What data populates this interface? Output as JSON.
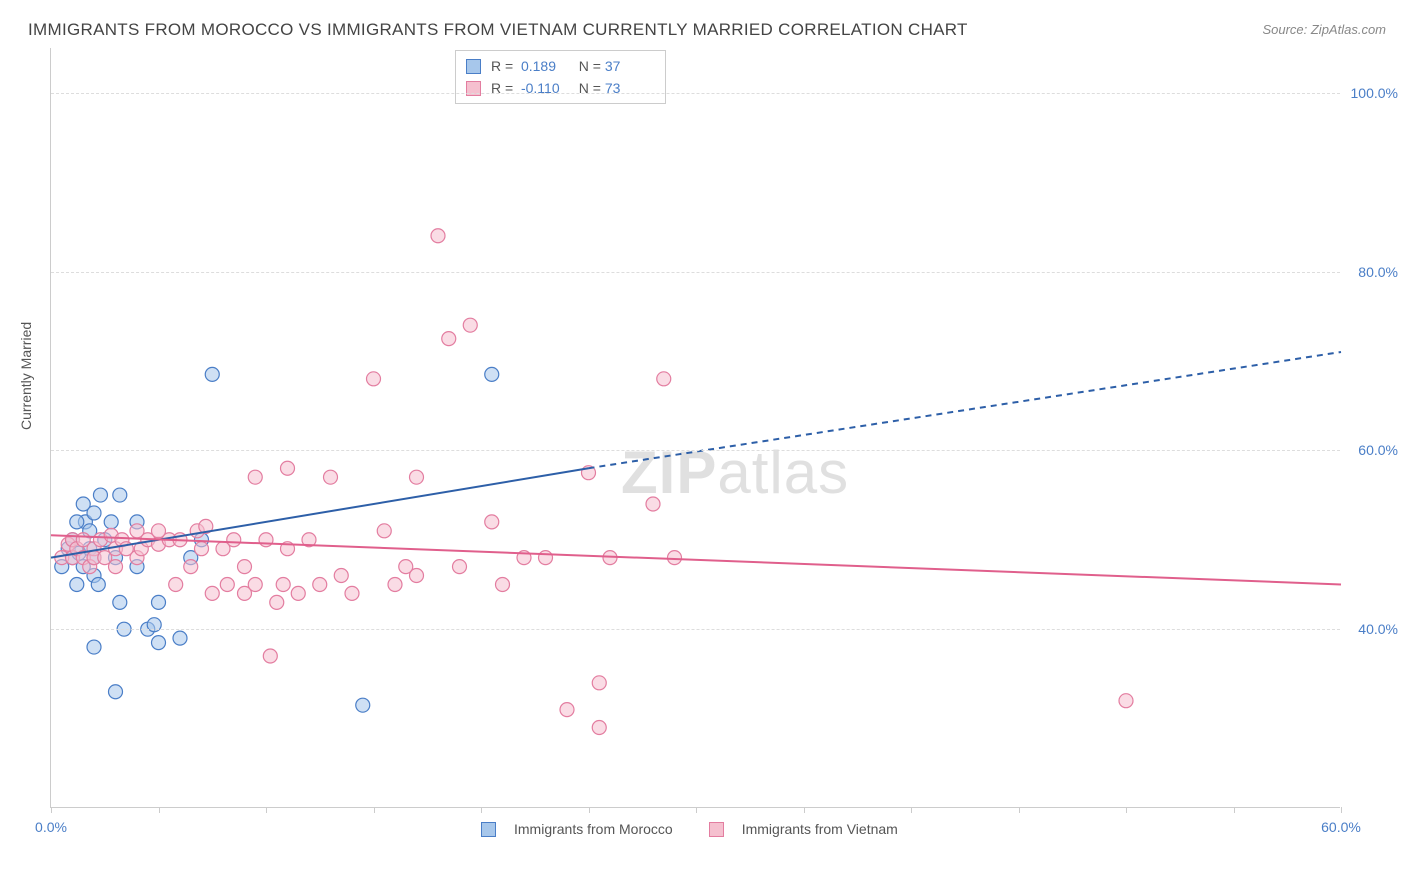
{
  "title": "IMMIGRANTS FROM MOROCCO VS IMMIGRANTS FROM VIETNAM CURRENTLY MARRIED CORRELATION CHART",
  "source": "Source: ZipAtlas.com",
  "watermark_bold": "ZIP",
  "watermark_light": "atlas",
  "y_axis_title": "Currently Married",
  "chart": {
    "type": "scatter",
    "background_color": "#ffffff",
    "grid_color": "#dddddd",
    "axis_color": "#cccccc",
    "tick_label_color": "#4a7ec7",
    "xlim": [
      0,
      60
    ],
    "ylim": [
      20,
      105
    ],
    "x_ticks": [
      0,
      5,
      10,
      15,
      20,
      25,
      30,
      35,
      40,
      45,
      50,
      55,
      60
    ],
    "x_tick_labels": {
      "0": "0.0%",
      "60": "60.0%"
    },
    "y_grid": [
      40,
      60,
      80,
      100
    ],
    "y_tick_labels": {
      "40": "40.0%",
      "60": "60.0%",
      "80": "80.0%",
      "100": "100.0%"
    },
    "marker_radius": 7,
    "marker_opacity": 0.55,
    "marker_stroke_width": 1.2,
    "line_width": 2,
    "series": [
      {
        "name": "Immigrants from Morocco",
        "fill_color": "#a7c7eb",
        "stroke_color": "#4a7ec7",
        "line_color": "#2d5fa8",
        "R": "0.189",
        "N": "37",
        "trend": {
          "x1": 0,
          "y1": 48,
          "x2_solid": 25,
          "y2_solid": 58,
          "x2_dash": 60,
          "y2_dash": 71
        },
        "points": [
          [
            0.5,
            47
          ],
          [
            0.8,
            49
          ],
          [
            1,
            48
          ],
          [
            1,
            50
          ],
          [
            1.2,
            45
          ],
          [
            1.3,
            48.5
          ],
          [
            1.5,
            47
          ],
          [
            1.5,
            54
          ],
          [
            1.6,
            52
          ],
          [
            1.8,
            49
          ],
          [
            2,
            48
          ],
          [
            2,
            53
          ],
          [
            2,
            46
          ],
          [
            2.2,
            45
          ],
          [
            2.3,
            55
          ],
          [
            2.5,
            50
          ],
          [
            2.8,
            52
          ],
          [
            3,
            48
          ],
          [
            3.2,
            55
          ],
          [
            3.2,
            43
          ],
          [
            4,
            52
          ],
          [
            4,
            47
          ],
          [
            4.5,
            40
          ],
          [
            5,
            38.5
          ],
          [
            5,
            43
          ],
          [
            6,
            39
          ],
          [
            6.5,
            48
          ],
          [
            7,
            50
          ],
          [
            3,
            33
          ],
          [
            3.4,
            40
          ],
          [
            4.8,
            40.5
          ],
          [
            7.5,
            68.5
          ],
          [
            14.5,
            31.5
          ],
          [
            20.5,
            68.5
          ],
          [
            2,
            38
          ],
          [
            1.2,
            52
          ],
          [
            1.8,
            51
          ]
        ]
      },
      {
        "name": "Immigrants from Vietnam",
        "fill_color": "#f5c0cf",
        "stroke_color": "#e37da0",
        "line_color": "#e05f8c",
        "R": "-0.110",
        "N": "73",
        "trend": {
          "x1": 0,
          "y1": 50.5,
          "x2_solid": 60,
          "y2_solid": 45,
          "x2_dash": 60,
          "y2_dash": 45
        },
        "points": [
          [
            0.5,
            48
          ],
          [
            0.8,
            49.5
          ],
          [
            1,
            48
          ],
          [
            1,
            50
          ],
          [
            1.2,
            49
          ],
          [
            1.5,
            48
          ],
          [
            1.5,
            50
          ],
          [
            1.8,
            47
          ],
          [
            2,
            49
          ],
          [
            2,
            48
          ],
          [
            2.3,
            50
          ],
          [
            2.5,
            48
          ],
          [
            2.8,
            50.5
          ],
          [
            3,
            49
          ],
          [
            3,
            47
          ],
          [
            3.3,
            50
          ],
          [
            3.5,
            49
          ],
          [
            4,
            48
          ],
          [
            4,
            51
          ],
          [
            4.2,
            49
          ],
          [
            4.5,
            50
          ],
          [
            5,
            49.5
          ],
          [
            5,
            51
          ],
          [
            5.5,
            50
          ],
          [
            5.8,
            45
          ],
          [
            6,
            50
          ],
          [
            6.5,
            47
          ],
          [
            6.8,
            51
          ],
          [
            7,
            49
          ],
          [
            7.2,
            51.5
          ],
          [
            7.5,
            44
          ],
          [
            8,
            49
          ],
          [
            8.2,
            45
          ],
          [
            8.5,
            50
          ],
          [
            9,
            44
          ],
          [
            9,
            47
          ],
          [
            9.5,
            45
          ],
          [
            9.5,
            57
          ],
          [
            10,
            50
          ],
          [
            10.2,
            37
          ],
          [
            10.5,
            43
          ],
          [
            10.8,
            45
          ],
          [
            11,
            58
          ],
          [
            11,
            49
          ],
          [
            11.5,
            44
          ],
          [
            12,
            50
          ],
          [
            12.5,
            45
          ],
          [
            13,
            57
          ],
          [
            13.5,
            46
          ],
          [
            14,
            44
          ],
          [
            15,
            68
          ],
          [
            15.5,
            51
          ],
          [
            16,
            45
          ],
          [
            16.5,
            47
          ],
          [
            17,
            57
          ],
          [
            17,
            46
          ],
          [
            18,
            84
          ],
          [
            18.5,
            72.5
          ],
          [
            19,
            47
          ],
          [
            19.5,
            74
          ],
          [
            20.5,
            52
          ],
          [
            21,
            45
          ],
          [
            22,
            48
          ],
          [
            23,
            48
          ],
          [
            24,
            31
          ],
          [
            25,
            57.5
          ],
          [
            25.5,
            29
          ],
          [
            25.5,
            34
          ],
          [
            26,
            48
          ],
          [
            28,
            54
          ],
          [
            28.5,
            68
          ],
          [
            29,
            48
          ],
          [
            50,
            32
          ]
        ]
      }
    ],
    "legend_labels": [
      "Immigrants from Morocco",
      "Immigrants from Vietnam"
    ],
    "stats_label_R": "R =",
    "stats_label_N": "N ="
  }
}
